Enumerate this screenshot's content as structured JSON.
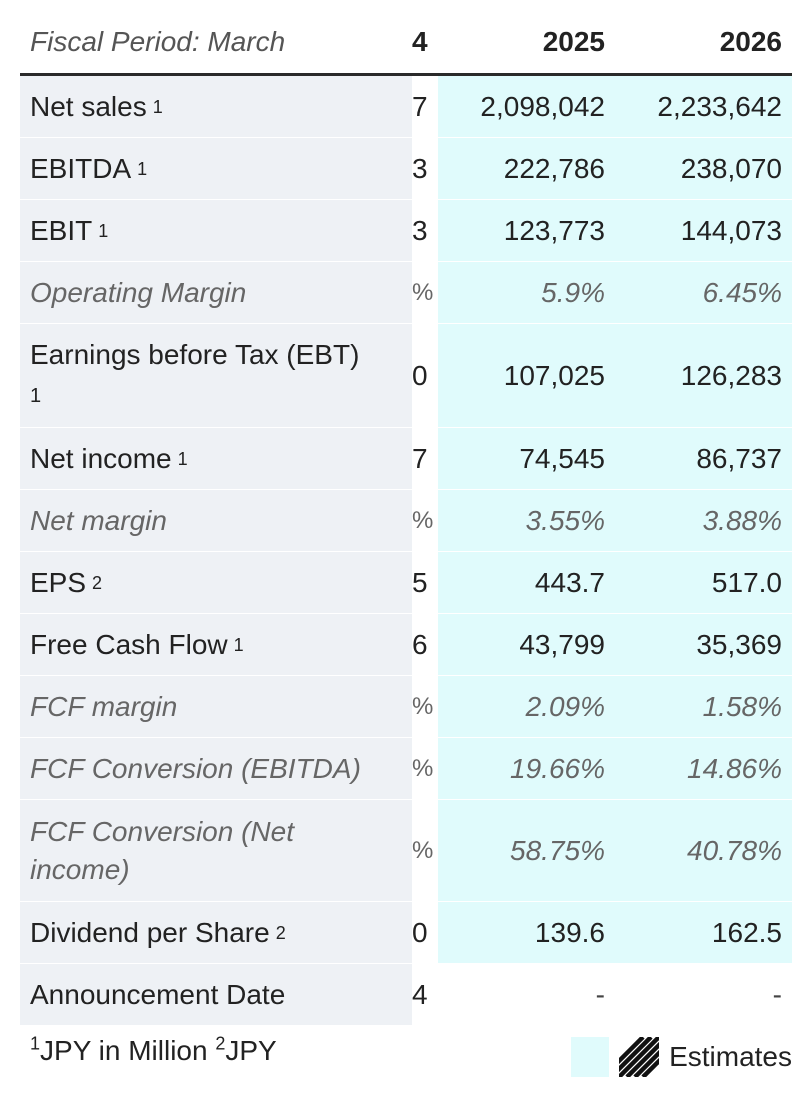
{
  "header": {
    "label": "Fiscal Period: March",
    "stub": "4",
    "years": [
      "2025",
      "2026"
    ]
  },
  "rows": [
    {
      "label": "Net sales",
      "sup": "1",
      "stub": "7",
      "v2025": "2,098,042",
      "v2026": "2,233,642",
      "italic": false
    },
    {
      "label": "EBITDA",
      "sup": "1",
      "stub": "3",
      "v2025": "222,786",
      "v2026": "238,070",
      "italic": false
    },
    {
      "label": "EBIT",
      "sup": "1",
      "stub": "3",
      "v2025": "123,773",
      "v2026": "144,073",
      "italic": false
    },
    {
      "label": "Operating Margin",
      "sup": "",
      "stub": "%",
      "v2025": "5.9%",
      "v2026": "6.45%",
      "italic": true
    },
    {
      "label": "Earnings before Tax (EBT)",
      "sup": "1",
      "stub": "0",
      "v2025": "107,025",
      "v2026": "126,283",
      "italic": false
    },
    {
      "label": "Net income",
      "sup": "1",
      "stub": "7",
      "v2025": "74,545",
      "v2026": "86,737",
      "italic": false
    },
    {
      "label": "Net margin",
      "sup": "",
      "stub": "%",
      "v2025": "3.55%",
      "v2026": "3.88%",
      "italic": true
    },
    {
      "label": "EPS",
      "sup": "2",
      "stub": "5",
      "v2025": "443.7",
      "v2026": "517.0",
      "italic": false
    },
    {
      "label": "Free Cash Flow",
      "sup": "1",
      "stub": "6",
      "v2025": "43,799",
      "v2026": "35,369",
      "italic": false
    },
    {
      "label": "FCF margin",
      "sup": "",
      "stub": "%",
      "v2025": "2.09%",
      "v2026": "1.58%",
      "italic": true
    },
    {
      "label": "FCF Conversion (EBITDA)",
      "sup": "",
      "stub": "%",
      "v2025": "19.66%",
      "v2026": "14.86%",
      "italic": true
    },
    {
      "label": "FCF Conversion (Net income)",
      "sup": "",
      "stub": "%",
      "v2025": "58.75%",
      "v2026": "40.78%",
      "italic": true
    },
    {
      "label": "Dividend per Share",
      "sup": "2",
      "stub": "0",
      "v2025": "139.6",
      "v2026": "162.5",
      "italic": false
    },
    {
      "label": "Announcement Date",
      "sup": "",
      "stub": "4",
      "v2025": "-",
      "v2026": "-",
      "italic": false
    }
  ],
  "footer": {
    "note1_sup": "1",
    "note1": "JPY in Million",
    "note2_sup": "2",
    "note2": "JPY"
  },
  "legend": {
    "label": "Estimates",
    "estimate_color": "#e0fbfc",
    "label_bg": "#eef1f5"
  }
}
